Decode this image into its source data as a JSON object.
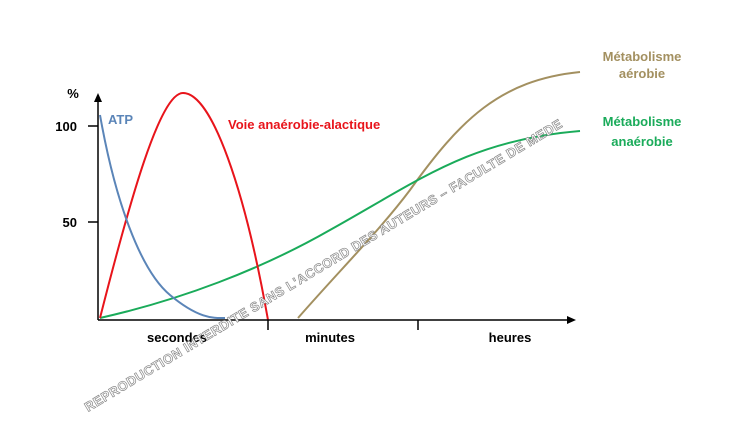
{
  "y_axis": {
    "label": "%",
    "ticks": [
      "100",
      "50"
    ]
  },
  "x_axis": {
    "periods": [
      "secondes",
      "minutes",
      "heures"
    ]
  },
  "curves": [
    {
      "label": [
        "ATP"
      ]
    },
    {
      "label": [
        "Voie anaérobie-alactique"
      ]
    },
    {
      "label": [
        "Métabolisme",
        "anaérobie"
      ]
    },
    {
      "label": [
        "Métabolisme",
        "aérobie"
      ]
    }
  ],
  "watermark": "REPRODUCTION INTERDITE SANS L'ACCORD DES AUTEURS – FACULTE DE MEDE"
}
